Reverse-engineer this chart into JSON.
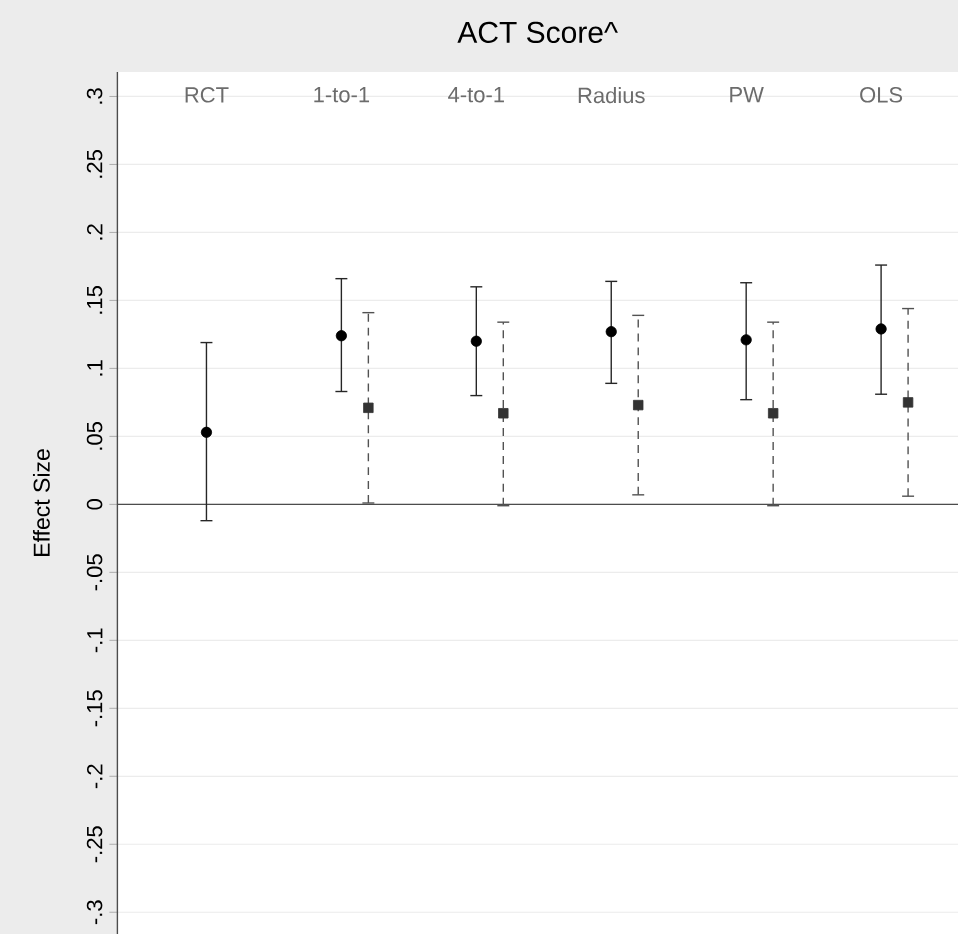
{
  "chart_data": {
    "type": "scatter",
    "title": "ACT Score^",
    "ylabel": "Effect Size",
    "categories": [
      "RCT",
      "1-to-1",
      "4-to-1",
      "Radius",
      "PW",
      "OLS"
    ],
    "series": [
      {
        "color": "#000000",
        "marker": "circle",
        "line_style": "solid",
        "values": [
          0.053,
          0.124,
          0.12,
          0.127,
          0.121,
          0.129
        ],
        "errors": [
          [
            -0.012,
            0.119
          ],
          [
            0.083,
            0.166
          ],
          [
            0.08,
            0.16
          ],
          [
            0.089,
            0.164
          ],
          [
            0.077,
            0.163
          ],
          [
            0.081,
            0.176
          ]
        ]
      },
      {
        "color": "#333333",
        "marker": "square",
        "line_style": "dashed",
        "values": [
          null,
          0.071,
          0.067,
          0.073,
          0.067,
          0.075
        ],
        "errors": [
          null,
          [
            0.001,
            0.141
          ],
          [
            -0.001,
            0.134
          ],
          [
            0.007,
            0.139
          ],
          [
            -0.001,
            0.134
          ],
          [
            0.006,
            0.144
          ]
        ]
      }
    ],
    "ylim": [
      -0.316,
      0.318
    ],
    "yticks": [
      {
        "value": -0.3,
        "label": "-.3"
      },
      {
        "value": -0.25,
        "label": "-.25"
      },
      {
        "value": -0.2,
        "label": "-.2"
      },
      {
        "value": -0.15,
        "label": "-.15"
      },
      {
        "value": -0.1,
        "label": "-.1"
      },
      {
        "value": -0.05,
        "label": "-.05"
      },
      {
        "value": 0,
        "label": "0"
      },
      {
        "value": 0.05,
        "label": ".05"
      },
      {
        "value": 0.1,
        "label": ".1"
      },
      {
        "value": 0.15,
        "label": ".15"
      },
      {
        "value": 0.2,
        "label": ".2"
      },
      {
        "value": 0.25,
        "label": ".25"
      },
      {
        "value": 0.3,
        "label": ".3"
      }
    ],
    "grid": "y",
    "ref_lines": [
      {
        "axis": "y",
        "value": 0
      }
    ]
  }
}
